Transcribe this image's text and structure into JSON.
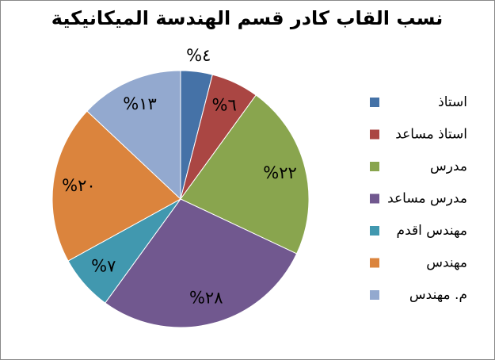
{
  "chart_data": {
    "type": "pie",
    "title": "نسب القاب كادر قسم الهندسة الميكانيكية",
    "categories": [
      "استاذ",
      "استاذ مساعد",
      "مدرس",
      "مدرس مساعد",
      "مهندس اقدم",
      "مهندس",
      "م. مهندس"
    ],
    "values": [
      4,
      6,
      22,
      28,
      7,
      20,
      13
    ],
    "value_labels": [
      "%٤",
      "%٦",
      "%٢٢",
      "%٢٨",
      "%٧",
      "%٢٠",
      "%١٣"
    ],
    "colors": [
      "#4572a7",
      "#aa4643",
      "#89a54e",
      "#71588f",
      "#4198af",
      "#db843d",
      "#93a9cf"
    ],
    "legend": "right"
  }
}
